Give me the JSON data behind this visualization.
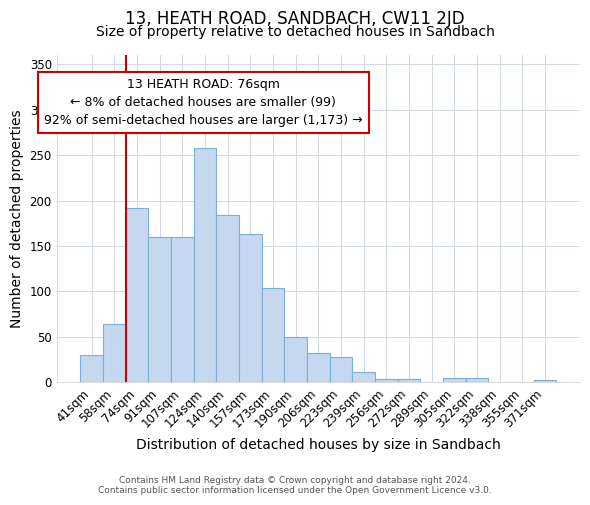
{
  "title": "13, HEATH ROAD, SANDBACH, CW11 2JD",
  "subtitle": "Size of property relative to detached houses in Sandbach",
  "xlabel": "Distribution of detached houses by size in Sandbach",
  "ylabel": "Number of detached properties",
  "categories": [
    "41sqm",
    "58sqm",
    "74sqm",
    "91sqm",
    "107sqm",
    "124sqm",
    "140sqm",
    "157sqm",
    "173sqm",
    "190sqm",
    "206sqm",
    "223sqm",
    "239sqm",
    "256sqm",
    "272sqm",
    "289sqm",
    "305sqm",
    "322sqm",
    "338sqm",
    "355sqm",
    "371sqm"
  ],
  "values": [
    30,
    64,
    192,
    160,
    160,
    258,
    184,
    163,
    104,
    50,
    32,
    28,
    11,
    4,
    4,
    0,
    5,
    5,
    0,
    0,
    3
  ],
  "bar_color": "#c5d8f0",
  "bar_edge_color": "#7bafd4",
  "vline_x_index": 2,
  "vline_color": "#cc0000",
  "annotation_text": "13 HEATH ROAD: 76sqm\n← 8% of detached houses are smaller (99)\n92% of semi-detached houses are larger (1,173) →",
  "annotation_box_facecolor": "#ffffff",
  "annotation_box_edgecolor": "#cc0000",
  "ylim": [
    0,
    360
  ],
  "yticks": [
    0,
    50,
    100,
    150,
    200,
    250,
    300,
    350
  ],
  "bg_color": "#ffffff",
  "grid_color": "#d0d8e8",
  "footer_text": "Contains HM Land Registry data © Crown copyright and database right 2024.\nContains public sector information licensed under the Open Government Licence v3.0.",
  "title_fontsize": 12,
  "subtitle_fontsize": 10,
  "axis_label_fontsize": 10,
  "tick_fontsize": 8.5,
  "annotation_fontsize": 9,
  "footer_fontsize": 6.5
}
